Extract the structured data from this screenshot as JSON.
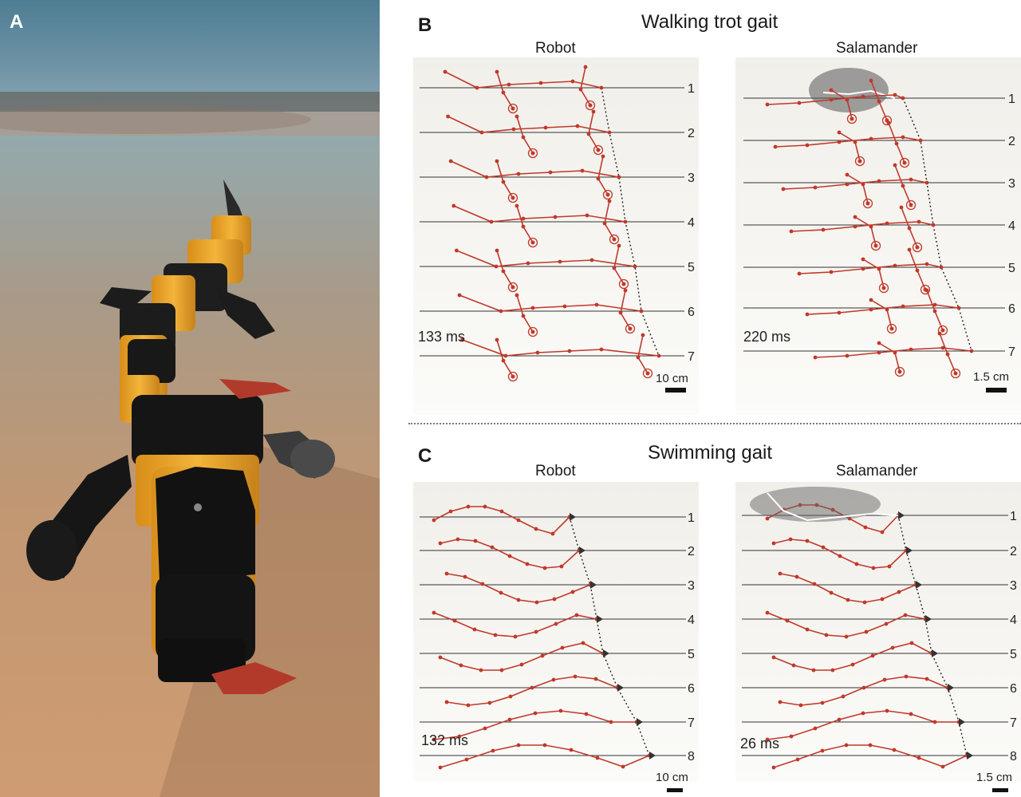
{
  "panels": {
    "a": {
      "letter": "A"
    },
    "b": {
      "letter": "B",
      "title": "Walking trot gait",
      "robot": {
        "label": "Robot",
        "time": "133 ms",
        "scale": "10 cm",
        "rows": [
          "1",
          "2",
          "3",
          "4",
          "5",
          "6",
          "7"
        ]
      },
      "salamander": {
        "label": "Salamander",
        "time": "220 ms",
        "scale": "1.5 cm",
        "rows": [
          "1",
          "2",
          "3",
          "4",
          "5",
          "6",
          "7"
        ]
      }
    },
    "c": {
      "letter": "C",
      "title": "Swimming gait",
      "robot": {
        "label": "Robot",
        "time": "132 ms",
        "scale": "10 cm",
        "rows": [
          "1",
          "2",
          "3",
          "4",
          "5",
          "6",
          "7",
          "8"
        ]
      },
      "salamander": {
        "label": "Salamander",
        "time": "26 ms",
        "scale": "1.5 cm",
        "rows": [
          "1",
          "2",
          "3",
          "4",
          "5",
          "6",
          "7",
          "8"
        ]
      }
    }
  },
  "colors": {
    "trace": "#c0392b",
    "line": "#333333",
    "scale_bar": "#111111"
  }
}
